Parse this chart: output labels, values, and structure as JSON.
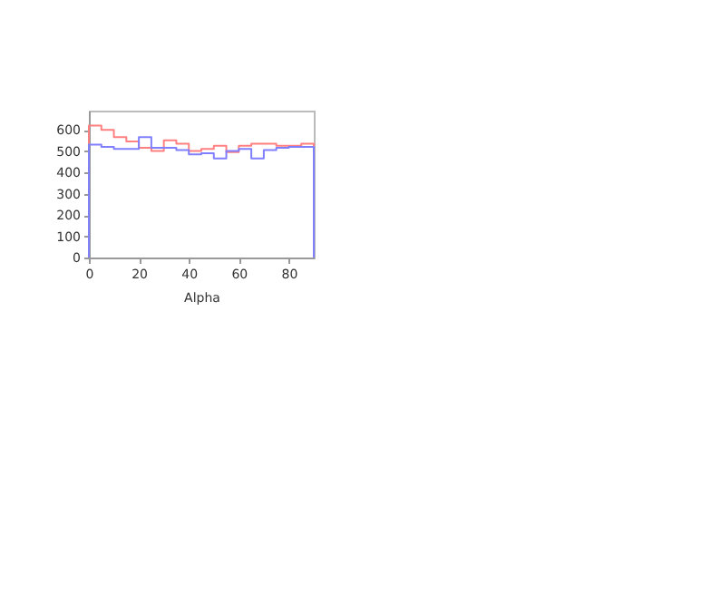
{
  "chart_data": {
    "type": "histogram",
    "xlabel": "Alpha",
    "bins": [
      0,
      5,
      10,
      15,
      20,
      25,
      30,
      35,
      40,
      45,
      50,
      55,
      60,
      65,
      70,
      75,
      80,
      85,
      90
    ],
    "series": [
      {
        "color": "#ff8080",
        "values": [
          620,
          600,
          565,
          545,
          515,
          500,
          550,
          535,
          500,
          510,
          525,
          495,
          525,
          535,
          535,
          525,
          525,
          535
        ]
      },
      {
        "color": "#8080ff",
        "values": [
          530,
          520,
          510,
          510,
          565,
          515,
          515,
          505,
          485,
          490,
          465,
          500,
          510,
          465,
          505,
          515,
          520,
          520
        ]
      }
    ],
    "xlim": [
      0,
      90
    ],
    "xticks": [
      0,
      20,
      40,
      60,
      80
    ],
    "ylim": [
      0,
      690
    ],
    "yticks": [
      0,
      100,
      200,
      300,
      400,
      500,
      600
    ],
    "grid": false
  }
}
